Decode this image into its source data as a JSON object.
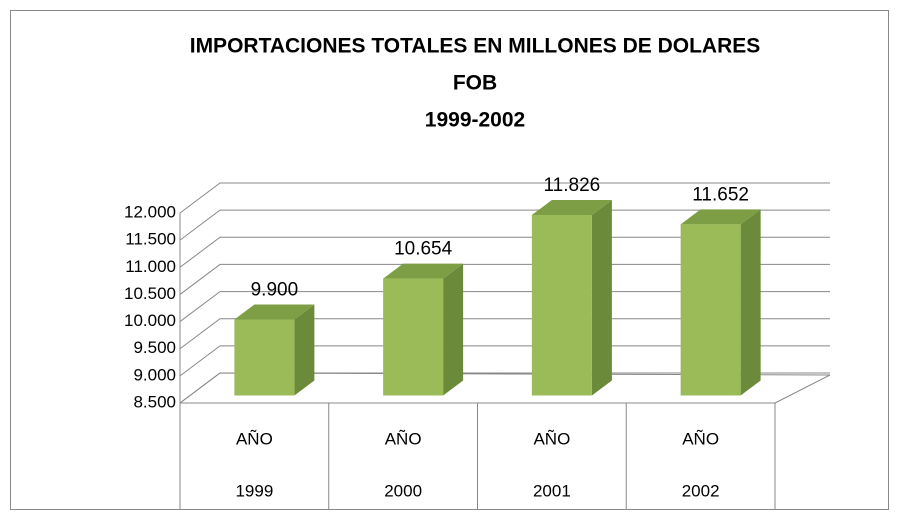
{
  "chart_data": {
    "type": "bar3d",
    "title": [
      "IMPORTACIONES TOTALES EN MILLONES DE DOLARES",
      "FOB",
      "1999-2002"
    ],
    "categories": [
      [
        "AÑO",
        "1999"
      ],
      [
        "AÑO",
        "2000"
      ],
      [
        "AÑO",
        "2001"
      ],
      [
        "AÑO",
        "2002"
      ]
    ],
    "values": [
      9900,
      10654,
      11826,
      11652
    ],
    "value_labels": [
      "9.900",
      "10.654",
      "11.826",
      "11.652"
    ],
    "color": "#9bbb59",
    "ylim": [
      8500,
      12000
    ],
    "yticks": [
      {
        "value": 8500,
        "label": "8.500"
      },
      {
        "value": 9000,
        "label": "9.000"
      },
      {
        "value": 9500,
        "label": "9.500"
      },
      {
        "value": 10000,
        "label": "10.000"
      },
      {
        "value": 10500,
        "label": "10.500"
      },
      {
        "value": 11000,
        "label": "11.000"
      },
      {
        "value": 11500,
        "label": "11.500"
      },
      {
        "value": 12000,
        "label": "12.000"
      }
    ],
    "grid": true
  }
}
